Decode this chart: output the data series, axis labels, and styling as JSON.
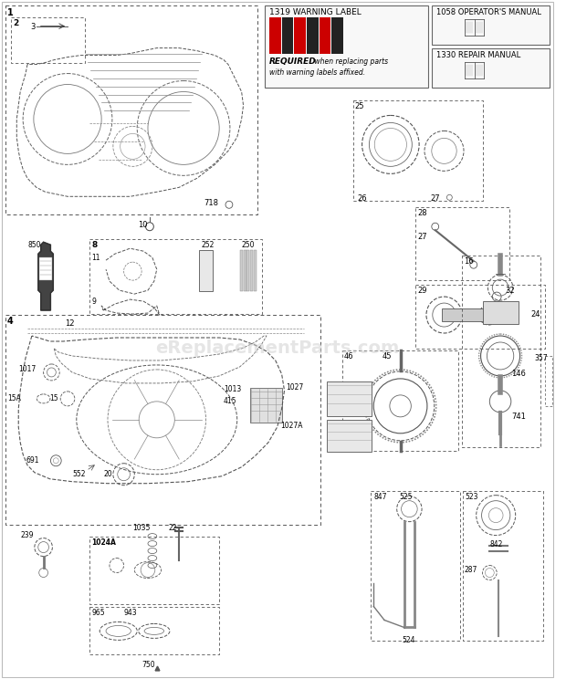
{
  "bg_color": "#ffffff",
  "fig_w": 6.2,
  "fig_h": 7.44,
  "dpi": 100,
  "watermark": "eReplacementParts.com",
  "warning_label_title": "1319 WARNING LABEL",
  "operators_manual_title": "1058 OPERATOR'S MANUAL",
  "repair_manual_title": "1330 REPAIR MANUAL",
  "required_bold": "REQUIRED",
  "required_rest": " when replacing parts",
  "required_line2": "with warning labels affixed."
}
